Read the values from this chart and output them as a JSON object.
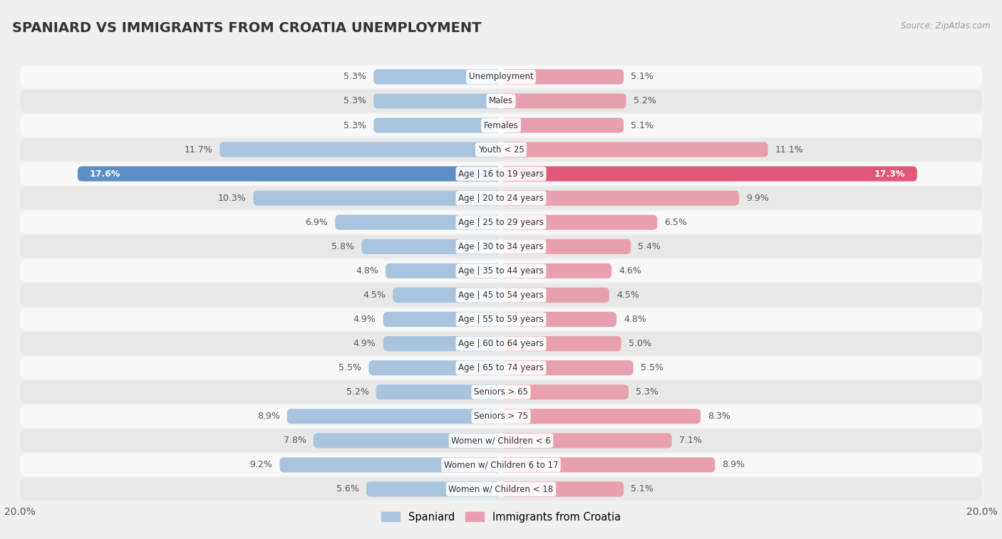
{
  "title": "SPANIARD VS IMMIGRANTS FROM CROATIA UNEMPLOYMENT",
  "source": "Source: ZipAtlas.com",
  "categories": [
    "Unemployment",
    "Males",
    "Females",
    "Youth < 25",
    "Age | 16 to 19 years",
    "Age | 20 to 24 years",
    "Age | 25 to 29 years",
    "Age | 30 to 34 years",
    "Age | 35 to 44 years",
    "Age | 45 to 54 years",
    "Age | 55 to 59 years",
    "Age | 60 to 64 years",
    "Age | 65 to 74 years",
    "Seniors > 65",
    "Seniors > 75",
    "Women w/ Children < 6",
    "Women w/ Children 6 to 17",
    "Women w/ Children < 18"
  ],
  "spaniard": [
    5.3,
    5.3,
    5.3,
    11.7,
    17.6,
    10.3,
    6.9,
    5.8,
    4.8,
    4.5,
    4.9,
    4.9,
    5.5,
    5.2,
    8.9,
    7.8,
    9.2,
    5.6
  ],
  "croatia": [
    5.1,
    5.2,
    5.1,
    11.1,
    17.3,
    9.9,
    6.5,
    5.4,
    4.6,
    4.5,
    4.8,
    5.0,
    5.5,
    5.3,
    8.3,
    7.1,
    8.9,
    5.1
  ],
  "spaniard_color": "#a8c4de",
  "croatia_color": "#e8a0b0",
  "spaniard_highlight_color": "#5b8ec4",
  "croatia_highlight_color": "#e05878",
  "highlight_index": 4,
  "axis_max": 20.0,
  "background_color": "#f0f0f0",
  "row_color_light": "#f8f8f8",
  "row_color_dark": "#e8e8e8",
  "legend_spaniard": "Spaniard",
  "legend_croatia": "Immigrants from Croatia"
}
